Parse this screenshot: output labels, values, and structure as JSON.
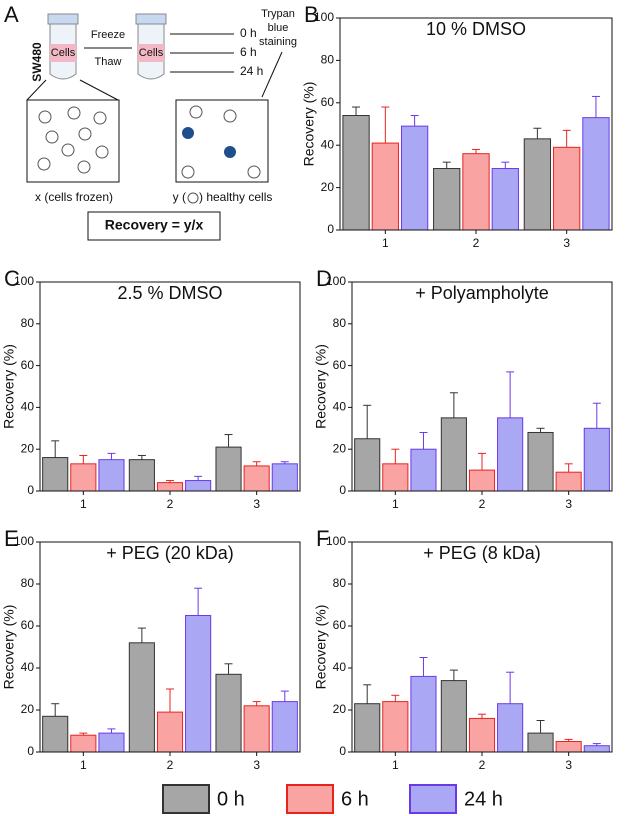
{
  "diagram": {
    "panel_label": "A",
    "cell_line": "SW480",
    "step_1": "Freeze",
    "step_2": "Thaw",
    "tube_label_1": "Cells",
    "tube_label_2": "Cells",
    "times": [
      "0 h",
      "6 h",
      "24 h"
    ],
    "stain": [
      "Trypan",
      "blue",
      "staining"
    ],
    "caption_left": "x (cells frozen)",
    "caption_right_start": "y (",
    "caption_right_end": ") healthy cells",
    "formula": "Recovery = y/x"
  },
  "chart_data": [
    {
      "type": "bar",
      "panel_label": "B",
      "title": "10 % DMSO",
      "y_label": "Recovery (%)",
      "categories": [
        "1",
        "2",
        "3"
      ],
      "ylim": [
        0,
        100
      ],
      "yticks": [
        0,
        20,
        40,
        60,
        80,
        100
      ],
      "series": [
        {
          "name": "0 h",
          "color": "#a6a6a6",
          "edgecolor": "#333333",
          "values": [
            54,
            29,
            43
          ],
          "errors": [
            4,
            3,
            5
          ]
        },
        {
          "name": "6 h",
          "color": "#f9a3a3",
          "edgecolor": "#e8231f",
          "values": [
            41,
            36,
            39
          ],
          "errors": [
            17,
            2,
            8
          ]
        },
        {
          "name": "24 h",
          "color": "#aaa8f4",
          "edgecolor": "#6a3ae8",
          "values": [
            49,
            29,
            53
          ],
          "errors": [
            5,
            3,
            10
          ]
        }
      ]
    },
    {
      "type": "bar",
      "panel_label": "C",
      "title": "2.5 % DMSO",
      "y_label": "Recovery (%)",
      "categories": [
        "1",
        "2",
        "3"
      ],
      "ylim": [
        0,
        100
      ],
      "yticks": [
        0,
        20,
        40,
        60,
        80,
        100
      ],
      "series": [
        {
          "name": "0 h",
          "color": "#a6a6a6",
          "edgecolor": "#333333",
          "values": [
            16,
            15,
            21
          ],
          "errors": [
            8,
            2,
            6
          ]
        },
        {
          "name": "6 h",
          "color": "#f9a3a3",
          "edgecolor": "#e8231f",
          "values": [
            13,
            4,
            12
          ],
          "errors": [
            4,
            1,
            2
          ]
        },
        {
          "name": "24 h",
          "color": "#aaa8f4",
          "edgecolor": "#6a3ae8",
          "values": [
            15,
            5,
            13
          ],
          "errors": [
            3,
            2,
            1
          ]
        }
      ]
    },
    {
      "type": "bar",
      "panel_label": "D",
      "title": "+ Polyampholyte",
      "y_label": "Recovery (%)",
      "categories": [
        "1",
        "2",
        "3"
      ],
      "ylim": [
        0,
        100
      ],
      "yticks": [
        0,
        20,
        40,
        60,
        80,
        100
      ],
      "series": [
        {
          "name": "0 h",
          "color": "#a6a6a6",
          "edgecolor": "#333333",
          "values": [
            25,
            35,
            28
          ],
          "errors": [
            16,
            12,
            2
          ]
        },
        {
          "name": "6 h",
          "color": "#f9a3a3",
          "edgecolor": "#e8231f",
          "values": [
            13,
            10,
            9
          ],
          "errors": [
            7,
            8,
            4
          ]
        },
        {
          "name": "24 h",
          "color": "#aaa8f4",
          "edgecolor": "#6a3ae8",
          "values": [
            20,
            35,
            30
          ],
          "errors": [
            8,
            22,
            12
          ]
        }
      ]
    },
    {
      "type": "bar",
      "panel_label": "E",
      "title": "+ PEG (20 kDa)",
      "y_label": "Recovery (%)",
      "categories": [
        "1",
        "2",
        "3"
      ],
      "ylim": [
        0,
        100
      ],
      "yticks": [
        0,
        20,
        40,
        60,
        80,
        100
      ],
      "series": [
        {
          "name": "0 h",
          "color": "#a6a6a6",
          "edgecolor": "#333333",
          "values": [
            17,
            52,
            37
          ],
          "errors": [
            6,
            7,
            5
          ]
        },
        {
          "name": "6 h",
          "color": "#f9a3a3",
          "edgecolor": "#e8231f",
          "values": [
            8,
            19,
            22
          ],
          "errors": [
            1,
            11,
            2
          ]
        },
        {
          "name": "24 h",
          "color": "#aaa8f4",
          "edgecolor": "#6a3ae8",
          "values": [
            9,
            65,
            24
          ],
          "errors": [
            2,
            13,
            5
          ]
        }
      ]
    },
    {
      "type": "bar",
      "panel_label": "F",
      "title": "+ PEG (8 kDa)",
      "y_label": "Recovery (%)",
      "categories": [
        "1",
        "2",
        "3"
      ],
      "ylim": [
        0,
        100
      ],
      "yticks": [
        0,
        20,
        40,
        60,
        80,
        100
      ],
      "series": [
        {
          "name": "0 h",
          "color": "#a6a6a6",
          "edgecolor": "#333333",
          "values": [
            23,
            34,
            9
          ],
          "errors": [
            9,
            5,
            6
          ]
        },
        {
          "name": "6 h",
          "color": "#f9a3a3",
          "edgecolor": "#e8231f",
          "values": [
            24,
            16,
            5
          ],
          "errors": [
            3,
            2,
            1
          ]
        },
        {
          "name": "24 h",
          "color": "#aaa8f4",
          "edgecolor": "#6a3ae8",
          "values": [
            36,
            23,
            3
          ],
          "errors": [
            9,
            15,
            1
          ]
        }
      ]
    }
  ]
}
